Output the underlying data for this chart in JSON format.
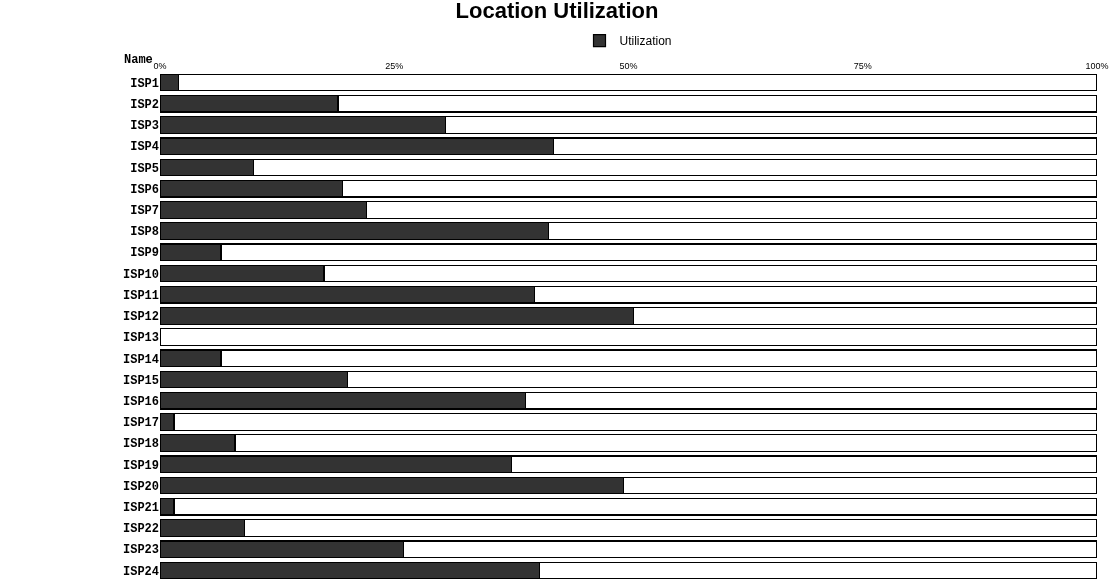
{
  "chart_data": {
    "type": "bar",
    "orientation": "horizontal",
    "stacked": true,
    "title": "Location Utilization",
    "annotations": [
      "Name"
    ],
    "categories": [
      "ISP1",
      "ISP2",
      "ISP3",
      "ISP4",
      "ISP5",
      "ISP6",
      "ISP7",
      "ISP8",
      "ISP9",
      "ISP10",
      "ISP11",
      "ISP12",
      "ISP13",
      "ISP14",
      "ISP15",
      "ISP16",
      "ISP17",
      "ISP18",
      "ISP19",
      "ISP20",
      "ISP21",
      "ISP22",
      "ISP23",
      "ISP24"
    ],
    "series": [
      {
        "name": "Utilization",
        "color": "#333333",
        "values": [
          2,
          19,
          30.5,
          42,
          10,
          19.5,
          22,
          41.5,
          6.5,
          17.5,
          40,
          50.5,
          0,
          6.5,
          20,
          39,
          1.5,
          8,
          37.5,
          49.5,
          1.5,
          9,
          26,
          40.5
        ]
      },
      {
        "color": "#ffffff",
        "values": [
          98,
          81,
          69.5,
          58,
          90,
          80.5,
          78,
          58.5,
          93.5,
          82.5,
          60,
          49.5,
          100,
          93.5,
          80,
          61,
          98.5,
          92,
          62.5,
          50.5,
          98.5,
          91,
          74,
          59.5
        ]
      }
    ],
    "xlim": [
      0,
      100
    ],
    "xticks": [
      {
        "value": 0,
        "label": "0%"
      },
      {
        "value": 25,
        "label": "25%"
      },
      {
        "value": 50,
        "label": "50%"
      },
      {
        "value": 75,
        "label": "75%"
      },
      {
        "value": 100,
        "label": "100%"
      }
    ],
    "grid": false,
    "legend": "top"
  }
}
